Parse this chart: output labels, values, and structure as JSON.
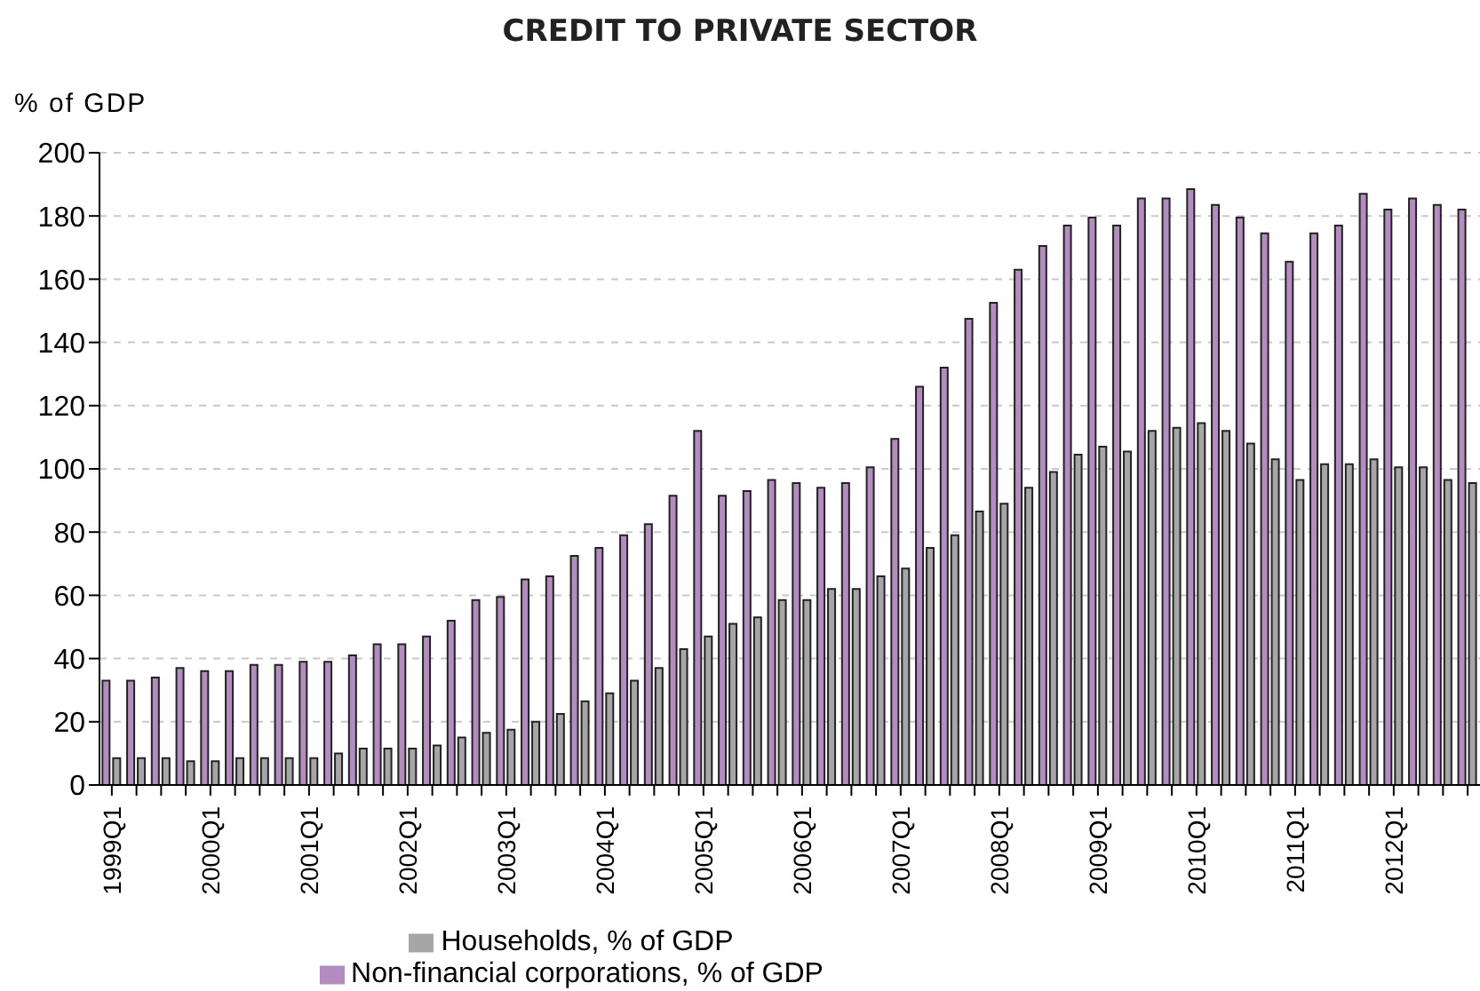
{
  "chart_data": {
    "type": "bar",
    "title": "CREDIT TO PRIVATE SECTOR",
    "ylabel": "% of GDP",
    "categories": [
      "1999Q1",
      null,
      null,
      null,
      "2000Q1",
      null,
      null,
      null,
      "2001Q1",
      null,
      null,
      null,
      "2002Q1",
      null,
      null,
      null,
      "2003Q1",
      null,
      null,
      null,
      "2004Q1",
      null,
      null,
      null,
      "2005Q1",
      null,
      null,
      null,
      "2006Q1",
      null,
      null,
      null,
      "2007Q1",
      null,
      null,
      null,
      "2008Q1",
      null,
      null,
      null,
      "2009Q1",
      null,
      null,
      null,
      "2010Q1",
      null,
      null,
      null,
      "2011Q1",
      null,
      null,
      null,
      "2012Q1",
      null,
      null,
      null
    ],
    "series": [
      {
        "name": "Non-financial corporations, % of GDP",
        "color": "#b48cc0",
        "values": [
          33,
          33,
          34,
          37,
          36,
          36,
          38,
          38,
          39,
          39,
          41,
          44.5,
          44.5,
          47,
          52,
          58.5,
          59.5,
          65,
          66,
          72.5,
          75,
          79,
          82.5,
          91.5,
          112,
          91.5,
          93,
          96.5,
          95.5,
          94,
          95.5,
          100.5,
          109.5,
          126,
          132,
          147.5,
          152.5,
          163,
          170.5,
          177,
          179.5,
          177,
          185.5,
          185.5,
          188.5,
          183.5,
          179.5,
          174.5,
          165.5,
          174.5,
          177,
          187,
          182,
          185.5,
          183.5,
          182
        ]
      },
      {
        "name": "Households, % of GDP",
        "color": "#a6a6a6",
        "values": [
          8.5,
          8.5,
          8.5,
          7.5,
          7.5,
          8.5,
          8.5,
          8.5,
          8.5,
          10,
          11.5,
          11.5,
          11.5,
          12.5,
          15,
          16.5,
          17.5,
          20,
          22.5,
          26.5,
          29,
          33,
          37,
          43,
          47,
          51,
          53,
          58.5,
          58.5,
          62,
          62,
          66,
          68.5,
          75,
          79,
          86.5,
          89,
          94,
          99,
          104.5,
          107,
          105.5,
          112,
          113,
          114.5,
          112,
          108,
          103,
          96.5,
          101.5,
          101.5,
          103,
          100.5,
          100.5,
          96.5,
          95.5
        ]
      }
    ],
    "ylim": [
      0,
      200
    ],
    "yticks": [
      0,
      20,
      40,
      60,
      80,
      100,
      120,
      140,
      160,
      180,
      200
    ],
    "grid": "y",
    "legend": "bottom"
  }
}
